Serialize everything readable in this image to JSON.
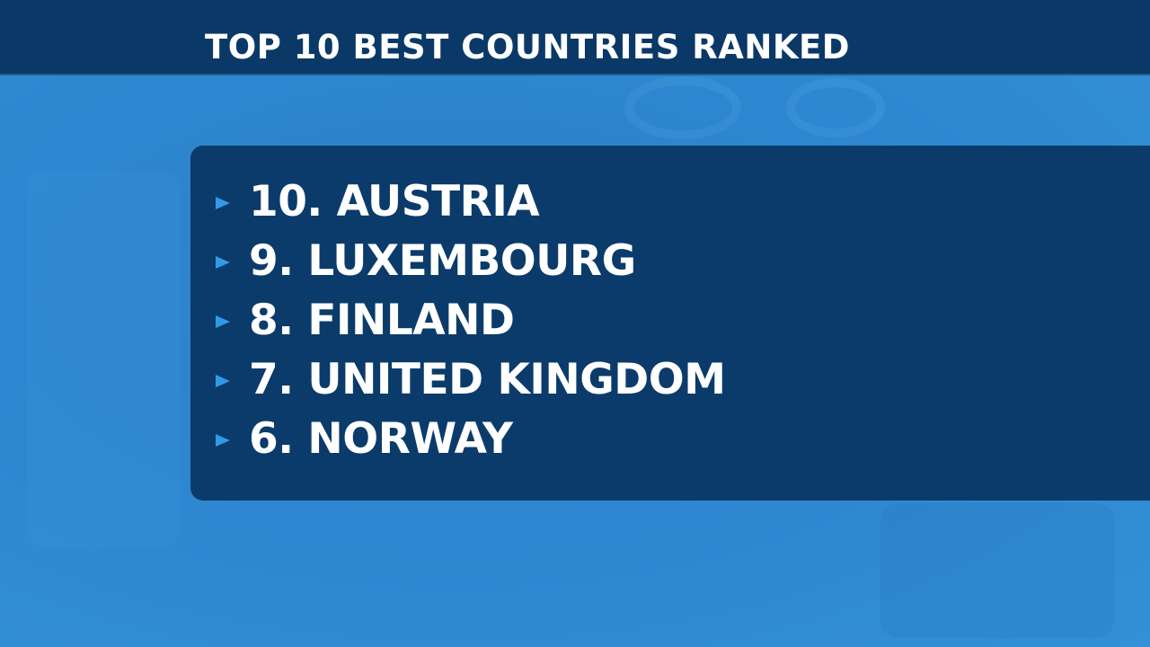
{
  "header": {
    "title": "TOP 10 BEST COUNTRIES RANKED"
  },
  "list": {
    "items": [
      "10. AUSTRIA",
      "9. LUXEMBOURG",
      "8. FINLAND",
      "7. UNITED KINGDOM",
      "6. NORWAY"
    ]
  }
}
